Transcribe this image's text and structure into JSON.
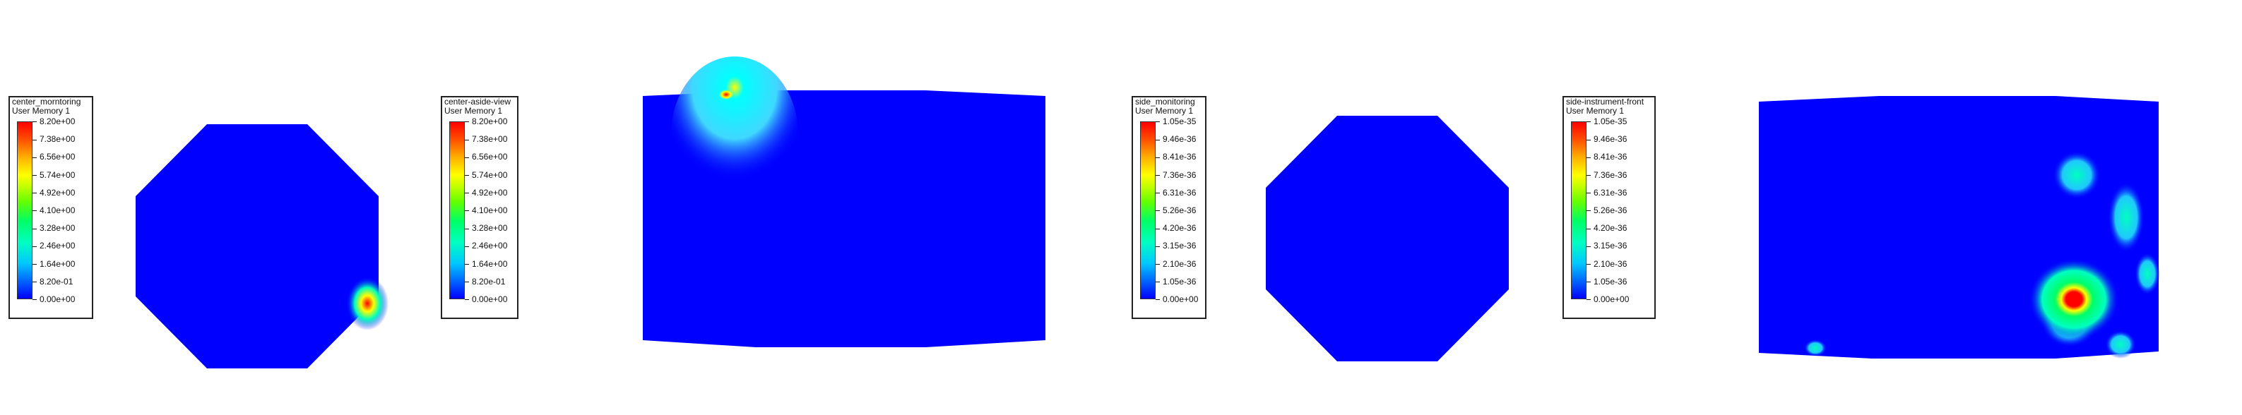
{
  "panels": [
    {
      "legend_title": "center_morntoring",
      "legend_subtitle": "User Memory 1",
      "ticks": [
        "8.20e+00",
        "7.38e+00",
        "6.56e+00",
        "5.74e+00",
        "4.92e+00",
        "4.10e+00",
        "3.28e+00",
        "2.46e+00",
        "1.64e+00",
        "8.20e-01",
        "0.00e+00"
      ]
    },
    {
      "legend_title": "center-aside-view",
      "legend_subtitle": "User Memory 1",
      "ticks": [
        "8.20e+00",
        "7.38e+00",
        "6.56e+00",
        "5.74e+00",
        "4.92e+00",
        "4.10e+00",
        "3.28e+00",
        "2.46e+00",
        "1.64e+00",
        "8.20e-01",
        "0.00e+00"
      ]
    },
    {
      "legend_title": "side_monitoring",
      "legend_subtitle": "User Memory 1",
      "ticks": [
        "1.05e-35",
        "9.46e-36",
        "8.41e-36",
        "7.36e-36",
        "6.31e-36",
        "5.26e-36",
        "4.20e-36",
        "3.15e-36",
        "2.10e-36",
        "1.05e-36",
        "0.00e+00"
      ]
    },
    {
      "legend_title": "side-instrument-front",
      "legend_subtitle": "User Memory 1",
      "ticks": [
        "1.05e-35",
        "9.46e-36",
        "8.41e-36",
        "7.36e-36",
        "6.31e-36",
        "5.26e-36",
        "4.20e-36",
        "3.15e-36",
        "2.10e-36",
        "1.05e-36",
        "0.00e+00"
      ]
    }
  ],
  "colors": {
    "field_base": "#0000ff",
    "hot": "#ff0000",
    "mid": "#00ffc0"
  }
}
